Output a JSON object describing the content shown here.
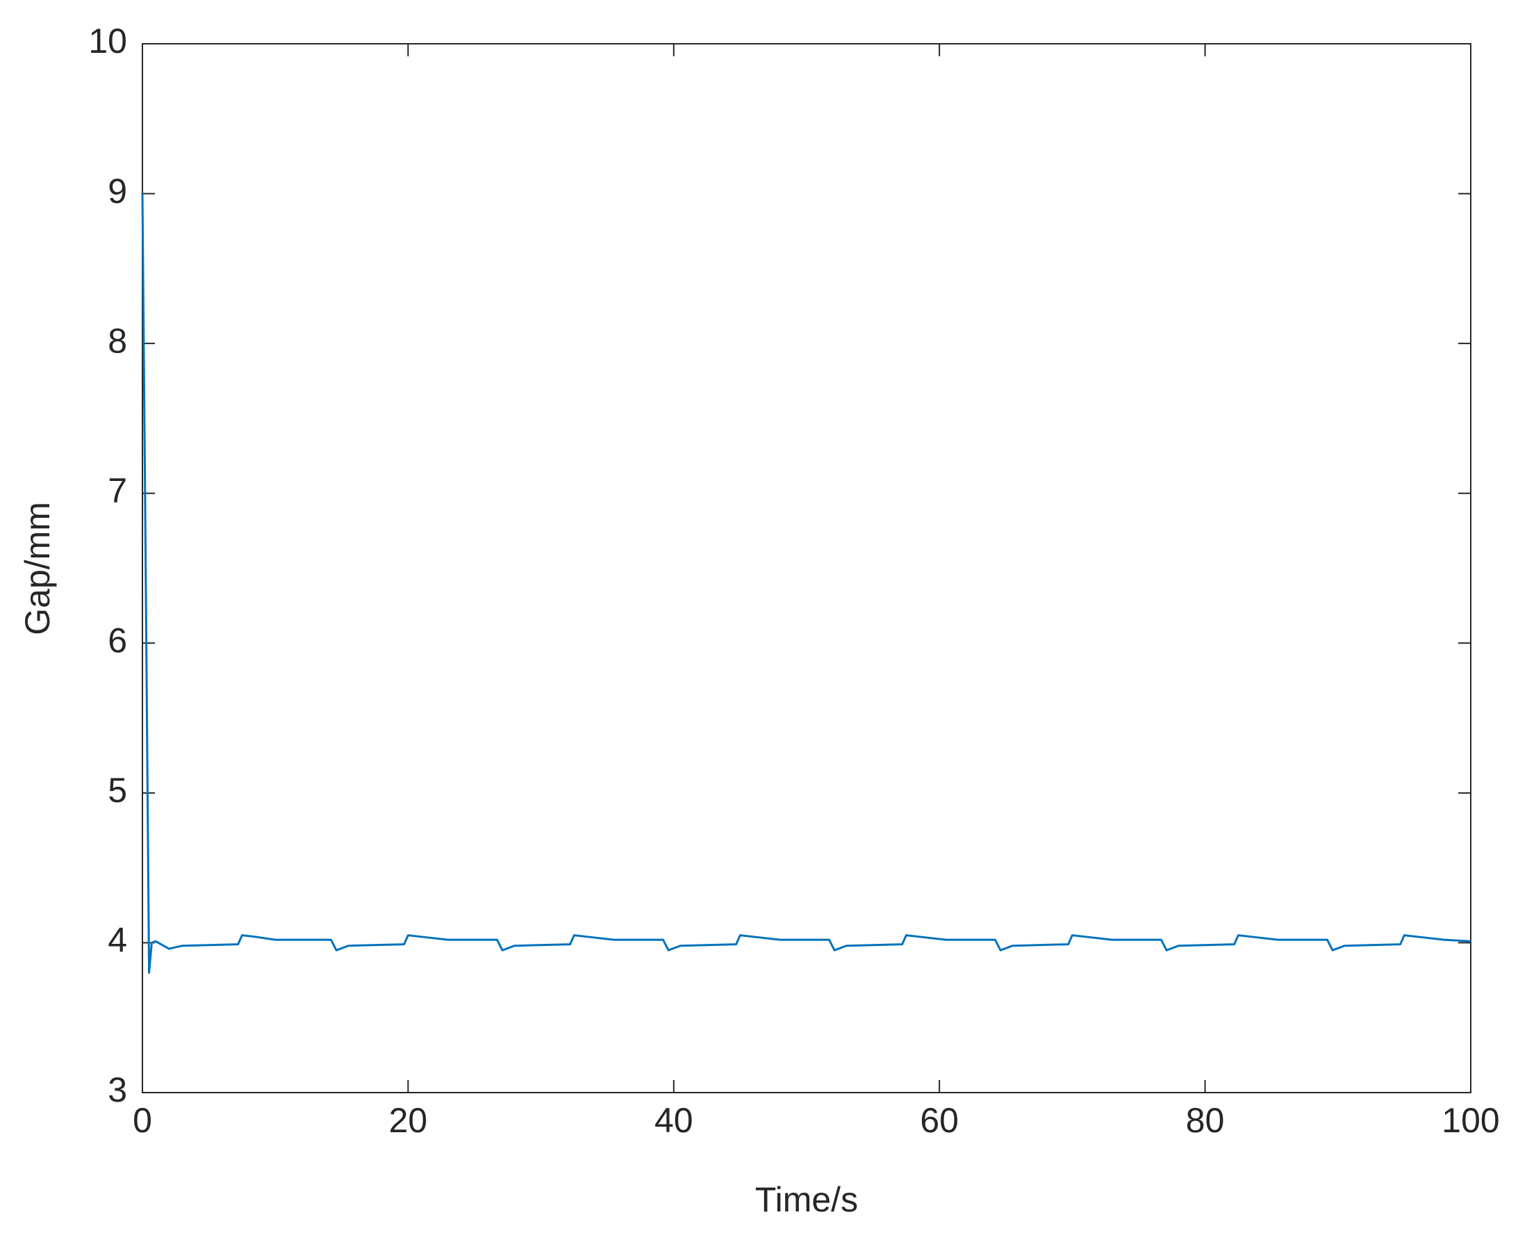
{
  "chart_data": {
    "type": "line",
    "xlabel": "Time/s",
    "ylabel": "Gap/mm",
    "x": [
      0,
      0.2,
      0.5,
      0.7,
      1.0,
      2,
      3,
      7.2,
      7.5,
      8.5,
      10,
      14.2,
      14.6,
      15.5,
      19.7,
      20,
      21,
      23,
      26.7,
      27.1,
      28,
      32.2,
      32.5,
      33.5,
      35.5,
      39.2,
      39.6,
      40.5,
      44.7,
      45,
      46,
      48,
      51.7,
      52.1,
      53,
      57.2,
      57.5,
      58.5,
      60.5,
      64.2,
      64.6,
      65.5,
      69.7,
      70,
      71,
      73,
      76.7,
      77.1,
      78,
      82.2,
      82.5,
      83.5,
      85.5,
      89.2,
      89.6,
      90.5,
      94.7,
      95,
      96,
      98,
      100
    ],
    "values": [
      9.0,
      7.0,
      3.8,
      4.0,
      4.01,
      3.96,
      3.98,
      3.99,
      4.05,
      4.04,
      4.02,
      4.02,
      3.95,
      3.98,
      3.99,
      4.05,
      4.04,
      4.02,
      4.02,
      3.95,
      3.98,
      3.99,
      4.05,
      4.04,
      4.02,
      4.02,
      3.95,
      3.98,
      3.99,
      4.05,
      4.04,
      4.02,
      4.02,
      3.95,
      3.98,
      3.99,
      4.05,
      4.04,
      4.02,
      4.02,
      3.95,
      3.98,
      3.99,
      4.05,
      4.04,
      4.02,
      4.02,
      3.95,
      3.98,
      3.99,
      4.05,
      4.04,
      4.02,
      4.02,
      3.95,
      3.98,
      3.99,
      4.05,
      4.04,
      4.02,
      4.01
    ],
    "color": "#0072bd",
    "xlim": [
      0,
      100
    ],
    "xticks": [
      0,
      20,
      40,
      60,
      80,
      100
    ],
    "ylim": [
      3,
      10
    ],
    "yticks": [
      3,
      4,
      5,
      6,
      7,
      8,
      9,
      10
    ],
    "grid": false
  }
}
